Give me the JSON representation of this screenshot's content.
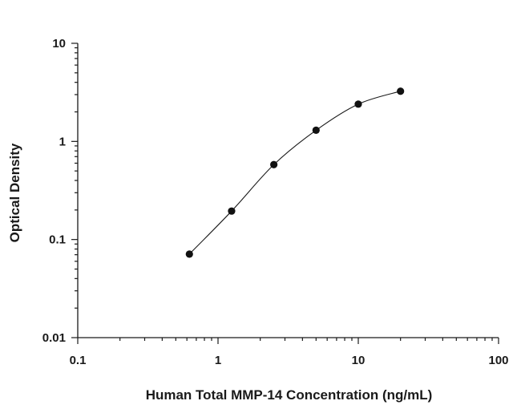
{
  "chart_data": {
    "type": "scatter",
    "title": "",
    "xlabel": "Human Total MMP-14 Concentration (ng/mL)",
    "ylabel": "Optical Density",
    "x_scale": "log",
    "y_scale": "log",
    "xlim": [
      0.1,
      100
    ],
    "ylim": [
      0.01,
      10
    ],
    "x_tick_labels": [
      "0.1",
      "1",
      "10",
      "100"
    ],
    "y_tick_labels": [
      "0.01",
      "0.1",
      "1",
      "10"
    ],
    "grid": false,
    "legend": "none",
    "marker_color": "#111111",
    "series": [
      {
        "x": [
          0.625,
          1.25,
          2.5,
          5,
          10,
          20
        ],
        "y": [
          0.071,
          0.195,
          0.58,
          1.3,
          2.4,
          3.25
        ],
        "fit_curve": true
      }
    ]
  }
}
